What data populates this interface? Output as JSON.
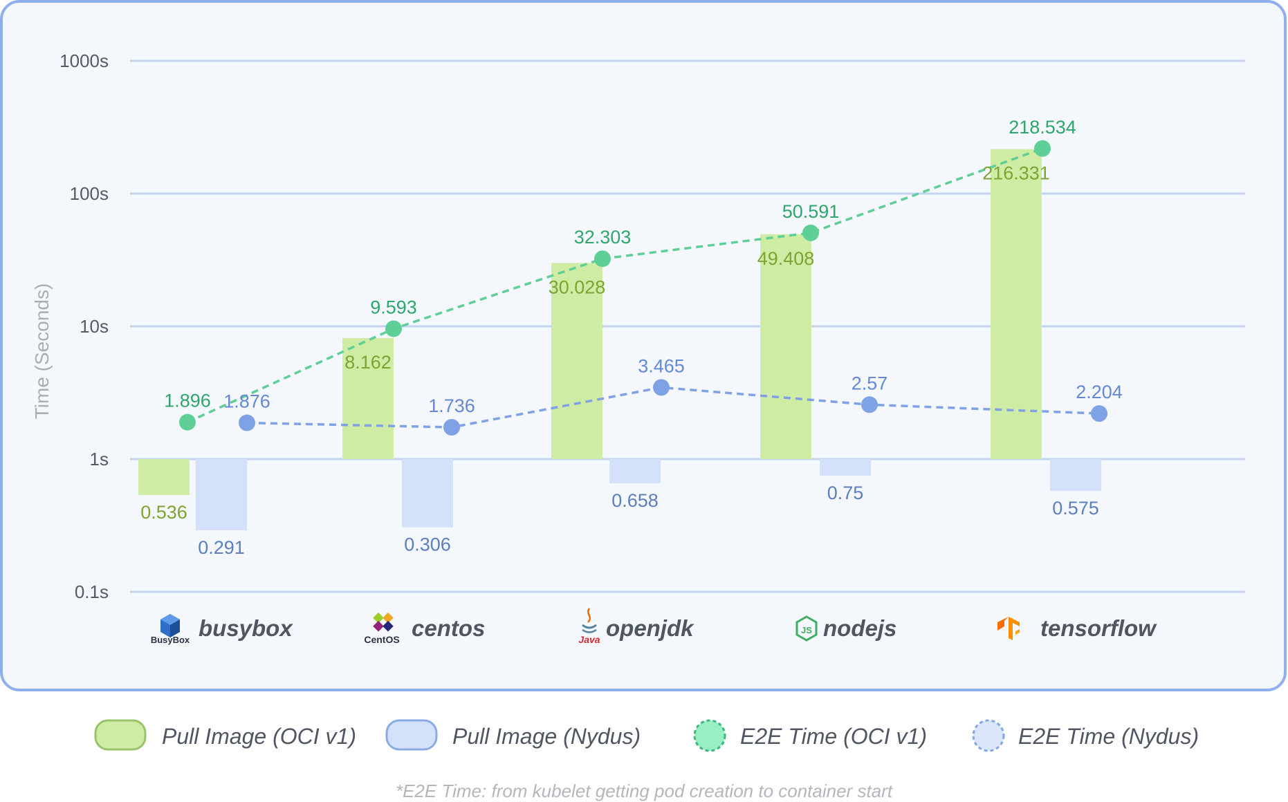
{
  "chart_data": {
    "type": "bar",
    "y_scale": "log",
    "ylabel": "Time (Seconds)",
    "ylim": [
      0.1,
      1000
    ],
    "y_ticks": [
      {
        "value": 1000,
        "label": "1000s"
      },
      {
        "value": 100,
        "label": "100s"
      },
      {
        "value": 10,
        "label": "10s"
      },
      {
        "value": 1,
        "label": "1s"
      },
      {
        "value": 0.1,
        "label": "0.1s"
      }
    ],
    "baseline": 1,
    "grid": true,
    "categories": [
      "busybox",
      "centos",
      "openjdk",
      "nodejs",
      "tensorflow"
    ],
    "series": [
      {
        "name": "Pull Image (OCI v1)",
        "kind": "bar",
        "values": [
          0.536,
          8.162,
          30.028,
          49.408,
          216.331
        ],
        "labels": [
          "0.536",
          "8.162",
          "30.028",
          "49.408",
          "216.331"
        ],
        "color": "#cfeca4",
        "label_color": "#7fa330"
      },
      {
        "name": "Pull Image (Nydus)",
        "kind": "bar",
        "values": [
          0.291,
          0.306,
          0.658,
          0.75,
          0.575
        ],
        "labels": [
          "0.291",
          "0.306",
          "0.658",
          "0.75",
          "0.575"
        ],
        "color": "#d3e1fa",
        "label_color": "#5c7ebd"
      },
      {
        "name": "E2E Time (OCI v1)",
        "kind": "line",
        "values": [
          1.896,
          9.593,
          32.303,
          50.591,
          218.534
        ],
        "labels": [
          "1.896",
          "9.593",
          "32.303",
          "50.591",
          "218.534"
        ],
        "color": "#5ecf97",
        "label_color": "#2fa66c"
      },
      {
        "name": "E2E Time (Nydus)",
        "kind": "line",
        "values": [
          1.876,
          1.736,
          3.465,
          2.57,
          2.204
        ],
        "labels": [
          "1.876",
          "1.736",
          "3.465",
          "2.57",
          "2.204"
        ],
        "color": "#7fa1e6",
        "label_color": "#6388d6"
      }
    ],
    "legend_position": "bottom",
    "legend": [
      {
        "label": "Pull Image (OCI v1)",
        "fill": "#cfeca4",
        "stroke": "#98c36a",
        "shape": "rounded-rect"
      },
      {
        "label": "Pull Image (Nydus)",
        "fill": "#d3e1fa",
        "stroke": "#8aabe6",
        "shape": "rounded-rect"
      },
      {
        "label": "E2E Time (OCI v1)",
        "fill": "#97efc3",
        "stroke": "#3fb77d",
        "shape": "dashed-circle"
      },
      {
        "label": "E2E Time (Nydus)",
        "fill": "#dbe6fb",
        "stroke": "#84a6e8",
        "shape": "dashed-circle"
      }
    ],
    "logos": [
      "BusyBox",
      "CentOS",
      "Java",
      "JS"
    ],
    "footnote": "*E2E Time: from kubelet getting pod creation to container start"
  }
}
